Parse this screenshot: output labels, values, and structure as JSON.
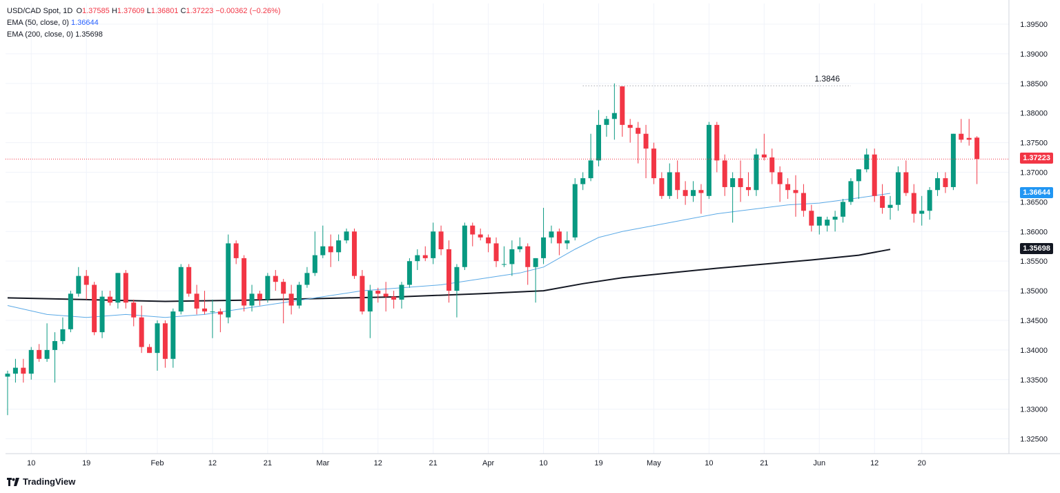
{
  "legend": {
    "symbol": "USD/CAD Spot, 1D",
    "o_label": "O",
    "o": "1.37585",
    "h_label": "H",
    "h": "1.37609",
    "l_label": "L",
    "l": "1.36801",
    "c_label": "C",
    "c": "1.37223",
    "change": "−0.00362 (−0.26%)",
    "ema50_label": "EMA (50, close, 0)",
    "ema50_value": "1.36644",
    "ema200_label": "EMA (200, close, 0)",
    "ema200_value": "1.35698"
  },
  "brand": {
    "name": "TradingView"
  },
  "colors": {
    "up": "#089981",
    "down": "#f23645",
    "ema50": "#5aa9e6",
    "ema200": "#131722",
    "grid": "#f0f3fa",
    "current_line": "#f23645"
  },
  "tags": {
    "current": "1.37223",
    "ema50": "1.36644",
    "ema200": "1.35698"
  },
  "annotation": {
    "label": "1.3846"
  },
  "chart_data": {
    "type": "candlestick",
    "title": "USD/CAD Spot, 1D",
    "ylim": [
      1.3225,
      1.3985
    ],
    "yticks": [
      "1.39500",
      "1.39000",
      "1.38500",
      "1.38000",
      "1.37500",
      "1.37000",
      "1.36500",
      "1.36000",
      "1.35500",
      "1.35000",
      "1.34500",
      "1.34000",
      "1.33500",
      "1.33000",
      "1.32500"
    ],
    "ytick_values": [
      1.395,
      1.39,
      1.385,
      1.38,
      1.375,
      1.37,
      1.365,
      1.36,
      1.355,
      1.35,
      1.345,
      1.34,
      1.335,
      1.33,
      1.325
    ],
    "xticks": [
      {
        "label": "10",
        "i": 3
      },
      {
        "label": "19",
        "i": 10
      },
      {
        "label": "Feb",
        "i": 19
      },
      {
        "label": "12",
        "i": 26
      },
      {
        "label": "21",
        "i": 33
      },
      {
        "label": "Mar",
        "i": 40
      },
      {
        "label": "12",
        "i": 47
      },
      {
        "label": "21",
        "i": 54
      },
      {
        "label": "Apr",
        "i": 61
      },
      {
        "label": "10",
        "i": 68
      },
      {
        "label": "19",
        "i": 75
      },
      {
        "label": "May",
        "i": 82
      },
      {
        "label": "10",
        "i": 89
      },
      {
        "label": "21",
        "i": 96
      },
      {
        "label": "Jun",
        "i": 103
      },
      {
        "label": "12",
        "i": 110
      },
      {
        "label": "20",
        "i": 116
      }
    ],
    "ohlc": [
      [
        1.3355,
        1.3365,
        1.329,
        1.336
      ],
      [
        1.336,
        1.3385,
        1.3345,
        1.337
      ],
      [
        1.337,
        1.3385,
        1.3345,
        1.336
      ],
      [
        1.336,
        1.3405,
        1.335,
        1.34
      ],
      [
        1.34,
        1.341,
        1.338,
        1.3385
      ],
      [
        1.3385,
        1.3445,
        1.338,
        1.34
      ],
      [
        1.34,
        1.343,
        1.3345,
        1.3415
      ],
      [
        1.3415,
        1.3455,
        1.341,
        1.3435
      ],
      [
        1.3435,
        1.35,
        1.343,
        1.3495
      ],
      [
        1.3495,
        1.354,
        1.349,
        1.3525
      ],
      [
        1.3525,
        1.3535,
        1.3485,
        1.351
      ],
      [
        1.351,
        1.3515,
        1.3425,
        1.343
      ],
      [
        1.343,
        1.35,
        1.342,
        1.349
      ],
      [
        1.349,
        1.35,
        1.3475,
        1.348
      ],
      [
        1.348,
        1.353,
        1.347,
        1.353
      ],
      [
        1.353,
        1.3535,
        1.347,
        1.348
      ],
      [
        1.348,
        1.3485,
        1.344,
        1.3455
      ],
      [
        1.3455,
        1.3475,
        1.3395,
        1.3405
      ],
      [
        1.3405,
        1.341,
        1.3395,
        1.3395
      ],
      [
        1.3395,
        1.345,
        1.3365,
        1.3445
      ],
      [
        1.3445,
        1.345,
        1.337,
        1.3385
      ],
      [
        1.3385,
        1.347,
        1.337,
        1.3465
      ],
      [
        1.3465,
        1.3545,
        1.346,
        1.354
      ],
      [
        1.354,
        1.3545,
        1.349,
        1.3495
      ],
      [
        1.3495,
        1.351,
        1.346,
        1.347
      ],
      [
        1.347,
        1.35,
        1.346,
        1.3465
      ],
      [
        1.3465,
        1.3485,
        1.342,
        1.3465
      ],
      [
        1.3465,
        1.347,
        1.343,
        1.346
      ],
      [
        1.3455,
        1.3595,
        1.3445,
        1.358
      ],
      [
        1.358,
        1.3585,
        1.3545,
        1.3555
      ],
      [
        1.3555,
        1.356,
        1.3465,
        1.3475
      ],
      [
        1.3475,
        1.351,
        1.3465,
        1.3495
      ],
      [
        1.3495,
        1.35,
        1.3475,
        1.3485
      ],
      [
        1.3485,
        1.353,
        1.348,
        1.3525
      ],
      [
        1.3525,
        1.3535,
        1.35,
        1.3515
      ],
      [
        1.3515,
        1.352,
        1.3445,
        1.3495
      ],
      [
        1.3495,
        1.351,
        1.346,
        1.3475
      ],
      [
        1.3475,
        1.3515,
        1.347,
        1.351
      ],
      [
        1.351,
        1.354,
        1.3505,
        1.353
      ],
      [
        1.353,
        1.36,
        1.3525,
        1.356
      ],
      [
        1.356,
        1.361,
        1.3555,
        1.3575
      ],
      [
        1.3575,
        1.3595,
        1.354,
        1.3565
      ],
      [
        1.3565,
        1.3595,
        1.355,
        1.3585
      ],
      [
        1.3585,
        1.3605,
        1.358,
        1.36
      ],
      [
        1.36,
        1.3605,
        1.352,
        1.3525
      ],
      [
        1.3525,
        1.3535,
        1.346,
        1.3465
      ],
      [
        1.3465,
        1.351,
        1.342,
        1.35
      ],
      [
        1.35,
        1.3505,
        1.348,
        1.3495
      ],
      [
        1.3495,
        1.3515,
        1.3465,
        1.349
      ],
      [
        1.349,
        1.35,
        1.347,
        1.3485
      ],
      [
        1.3485,
        1.3515,
        1.347,
        1.351
      ],
      [
        1.351,
        1.3555,
        1.3505,
        1.355
      ],
      [
        1.355,
        1.357,
        1.3535,
        1.356
      ],
      [
        1.356,
        1.3575,
        1.355,
        1.3555
      ],
      [
        1.3555,
        1.3615,
        1.3545,
        1.36
      ],
      [
        1.36,
        1.361,
        1.356,
        1.357
      ],
      [
        1.357,
        1.3585,
        1.348,
        1.35
      ],
      [
        1.35,
        1.3545,
        1.3455,
        1.354
      ],
      [
        1.354,
        1.3615,
        1.3535,
        1.361
      ],
      [
        1.361,
        1.3615,
        1.3575,
        1.3595
      ],
      [
        1.3595,
        1.3605,
        1.3585,
        1.359
      ],
      [
        1.359,
        1.3595,
        1.3565,
        1.358
      ],
      [
        1.358,
        1.359,
        1.354,
        1.355
      ],
      [
        1.3545,
        1.3575,
        1.354,
        1.3545
      ],
      [
        1.3545,
        1.3585,
        1.3525,
        1.357
      ],
      [
        1.357,
        1.359,
        1.3565,
        1.3575
      ],
      [
        1.3575,
        1.358,
        1.351,
        1.354
      ],
      [
        1.354,
        1.3555,
        1.348,
        1.3555
      ],
      [
        1.3555,
        1.364,
        1.3545,
        1.359
      ],
      [
        1.359,
        1.361,
        1.358,
        1.36
      ],
      [
        1.36,
        1.3605,
        1.356,
        1.358
      ],
      [
        1.358,
        1.36,
        1.357,
        1.3585
      ],
      [
        1.359,
        1.369,
        1.3585,
        1.368
      ],
      [
        1.368,
        1.37,
        1.367,
        1.369
      ],
      [
        1.369,
        1.3765,
        1.3685,
        1.372
      ],
      [
        1.372,
        1.3805,
        1.371,
        1.378
      ],
      [
        1.378,
        1.3795,
        1.376,
        1.379
      ],
      [
        1.379,
        1.385,
        1.3755,
        1.38
      ],
      [
        1.3845,
        1.3845,
        1.376,
        1.378
      ],
      [
        1.378,
        1.379,
        1.375,
        1.3775
      ],
      [
        1.3775,
        1.3785,
        1.3715,
        1.3765
      ],
      [
        1.3765,
        1.378,
        1.369,
        1.374
      ],
      [
        1.374,
        1.375,
        1.368,
        1.369
      ],
      [
        1.369,
        1.37,
        1.3655,
        1.366
      ],
      [
        1.366,
        1.3715,
        1.3655,
        1.37
      ],
      [
        1.37,
        1.372,
        1.3655,
        1.367
      ],
      [
        1.367,
        1.3685,
        1.3645,
        1.366
      ],
      [
        1.366,
        1.3685,
        1.365,
        1.367
      ],
      [
        1.367,
        1.368,
        1.363,
        1.3665
      ],
      [
        1.366,
        1.3785,
        1.3655,
        1.378
      ],
      [
        1.378,
        1.3785,
        1.37,
        1.372
      ],
      [
        1.372,
        1.373,
        1.366,
        1.3675
      ],
      [
        1.3675,
        1.37,
        1.3615,
        1.369
      ],
      [
        1.369,
        1.372,
        1.365,
        1.3675
      ],
      [
        1.3675,
        1.37,
        1.366,
        1.367
      ],
      [
        1.367,
        1.374,
        1.366,
        1.373
      ],
      [
        1.373,
        1.3765,
        1.372,
        1.3725
      ],
      [
        1.3725,
        1.374,
        1.368,
        1.37
      ],
      [
        1.37,
        1.371,
        1.365,
        1.368
      ],
      [
        1.368,
        1.369,
        1.3655,
        1.367
      ],
      [
        1.367,
        1.3695,
        1.3625,
        1.3665
      ],
      [
        1.3665,
        1.368,
        1.3625,
        1.3635
      ],
      [
        1.3635,
        1.3645,
        1.36,
        1.361
      ],
      [
        1.361,
        1.3625,
        1.3595,
        1.3625
      ],
      [
        1.361,
        1.3625,
        1.36,
        1.362
      ],
      [
        1.362,
        1.3635,
        1.36,
        1.3625
      ],
      [
        1.3625,
        1.3655,
        1.3615,
        1.365
      ],
      [
        1.365,
        1.369,
        1.3645,
        1.3685
      ]
    ],
    "ohlc_tail": [
      [
        1.3685,
        1.3705,
        1.3655,
        1.3705
      ],
      [
        1.3705,
        1.374,
        1.37,
        1.373
      ],
      [
        1.373,
        1.374,
        1.365,
        1.366
      ],
      [
        1.366,
        1.368,
        1.363,
        1.364
      ],
      [
        1.364,
        1.366,
        1.362,
        1.3645
      ],
      [
        1.3645,
        1.371,
        1.3635,
        1.37
      ],
      [
        1.37,
        1.372,
        1.366,
        1.3665
      ],
      [
        1.3665,
        1.368,
        1.3615,
        1.363
      ],
      [
        1.363,
        1.366,
        1.361,
        1.3635
      ],
      [
        1.3635,
        1.3675,
        1.362,
        1.367
      ],
      [
        1.367,
        1.37,
        1.366,
        1.369
      ],
      [
        1.369,
        1.37,
        1.3665,
        1.3675
      ],
      [
        1.3675,
        1.3765,
        1.367,
        1.3765
      ],
      [
        1.3765,
        1.379,
        1.375,
        1.3755
      ],
      [
        1.3758,
        1.379,
        1.3745,
        1.3755
      ],
      [
        1.37585,
        1.37609,
        1.36801,
        1.37223
      ]
    ],
    "ema50": [
      [
        0,
        1.3475
      ],
      [
        5,
        1.346
      ],
      [
        10,
        1.3455
      ],
      [
        15,
        1.346
      ],
      [
        20,
        1.3455
      ],
      [
        25,
        1.346
      ],
      [
        30,
        1.347
      ],
      [
        35,
        1.348
      ],
      [
        40,
        1.349
      ],
      [
        45,
        1.35
      ],
      [
        50,
        1.3505
      ],
      [
        55,
        1.351
      ],
      [
        60,
        1.352
      ],
      [
        65,
        1.353
      ],
      [
        68,
        1.354
      ],
      [
        72,
        1.357
      ],
      [
        75,
        1.359
      ],
      [
        78,
        1.36
      ],
      [
        82,
        1.361
      ],
      [
        86,
        1.362
      ],
      [
        90,
        1.363
      ],
      [
        93,
        1.3635
      ],
      [
        96,
        1.364
      ],
      [
        99,
        1.3645
      ],
      [
        103,
        1.3648
      ],
      [
        107,
        1.3655
      ],
      [
        112,
        1.36644
      ]
    ],
    "ema200": [
      [
        0,
        1.3488
      ],
      [
        10,
        1.3485
      ],
      [
        20,
        1.3482
      ],
      [
        30,
        1.3484
      ],
      [
        40,
        1.3487
      ],
      [
        50,
        1.349
      ],
      [
        60,
        1.3495
      ],
      [
        68,
        1.35
      ],
      [
        73,
        1.3512
      ],
      [
        78,
        1.3522
      ],
      [
        84,
        1.353
      ],
      [
        90,
        1.3538
      ],
      [
        96,
        1.3545
      ],
      [
        102,
        1.3552
      ],
      [
        108,
        1.356
      ],
      [
        112,
        1.35698
      ]
    ]
  }
}
